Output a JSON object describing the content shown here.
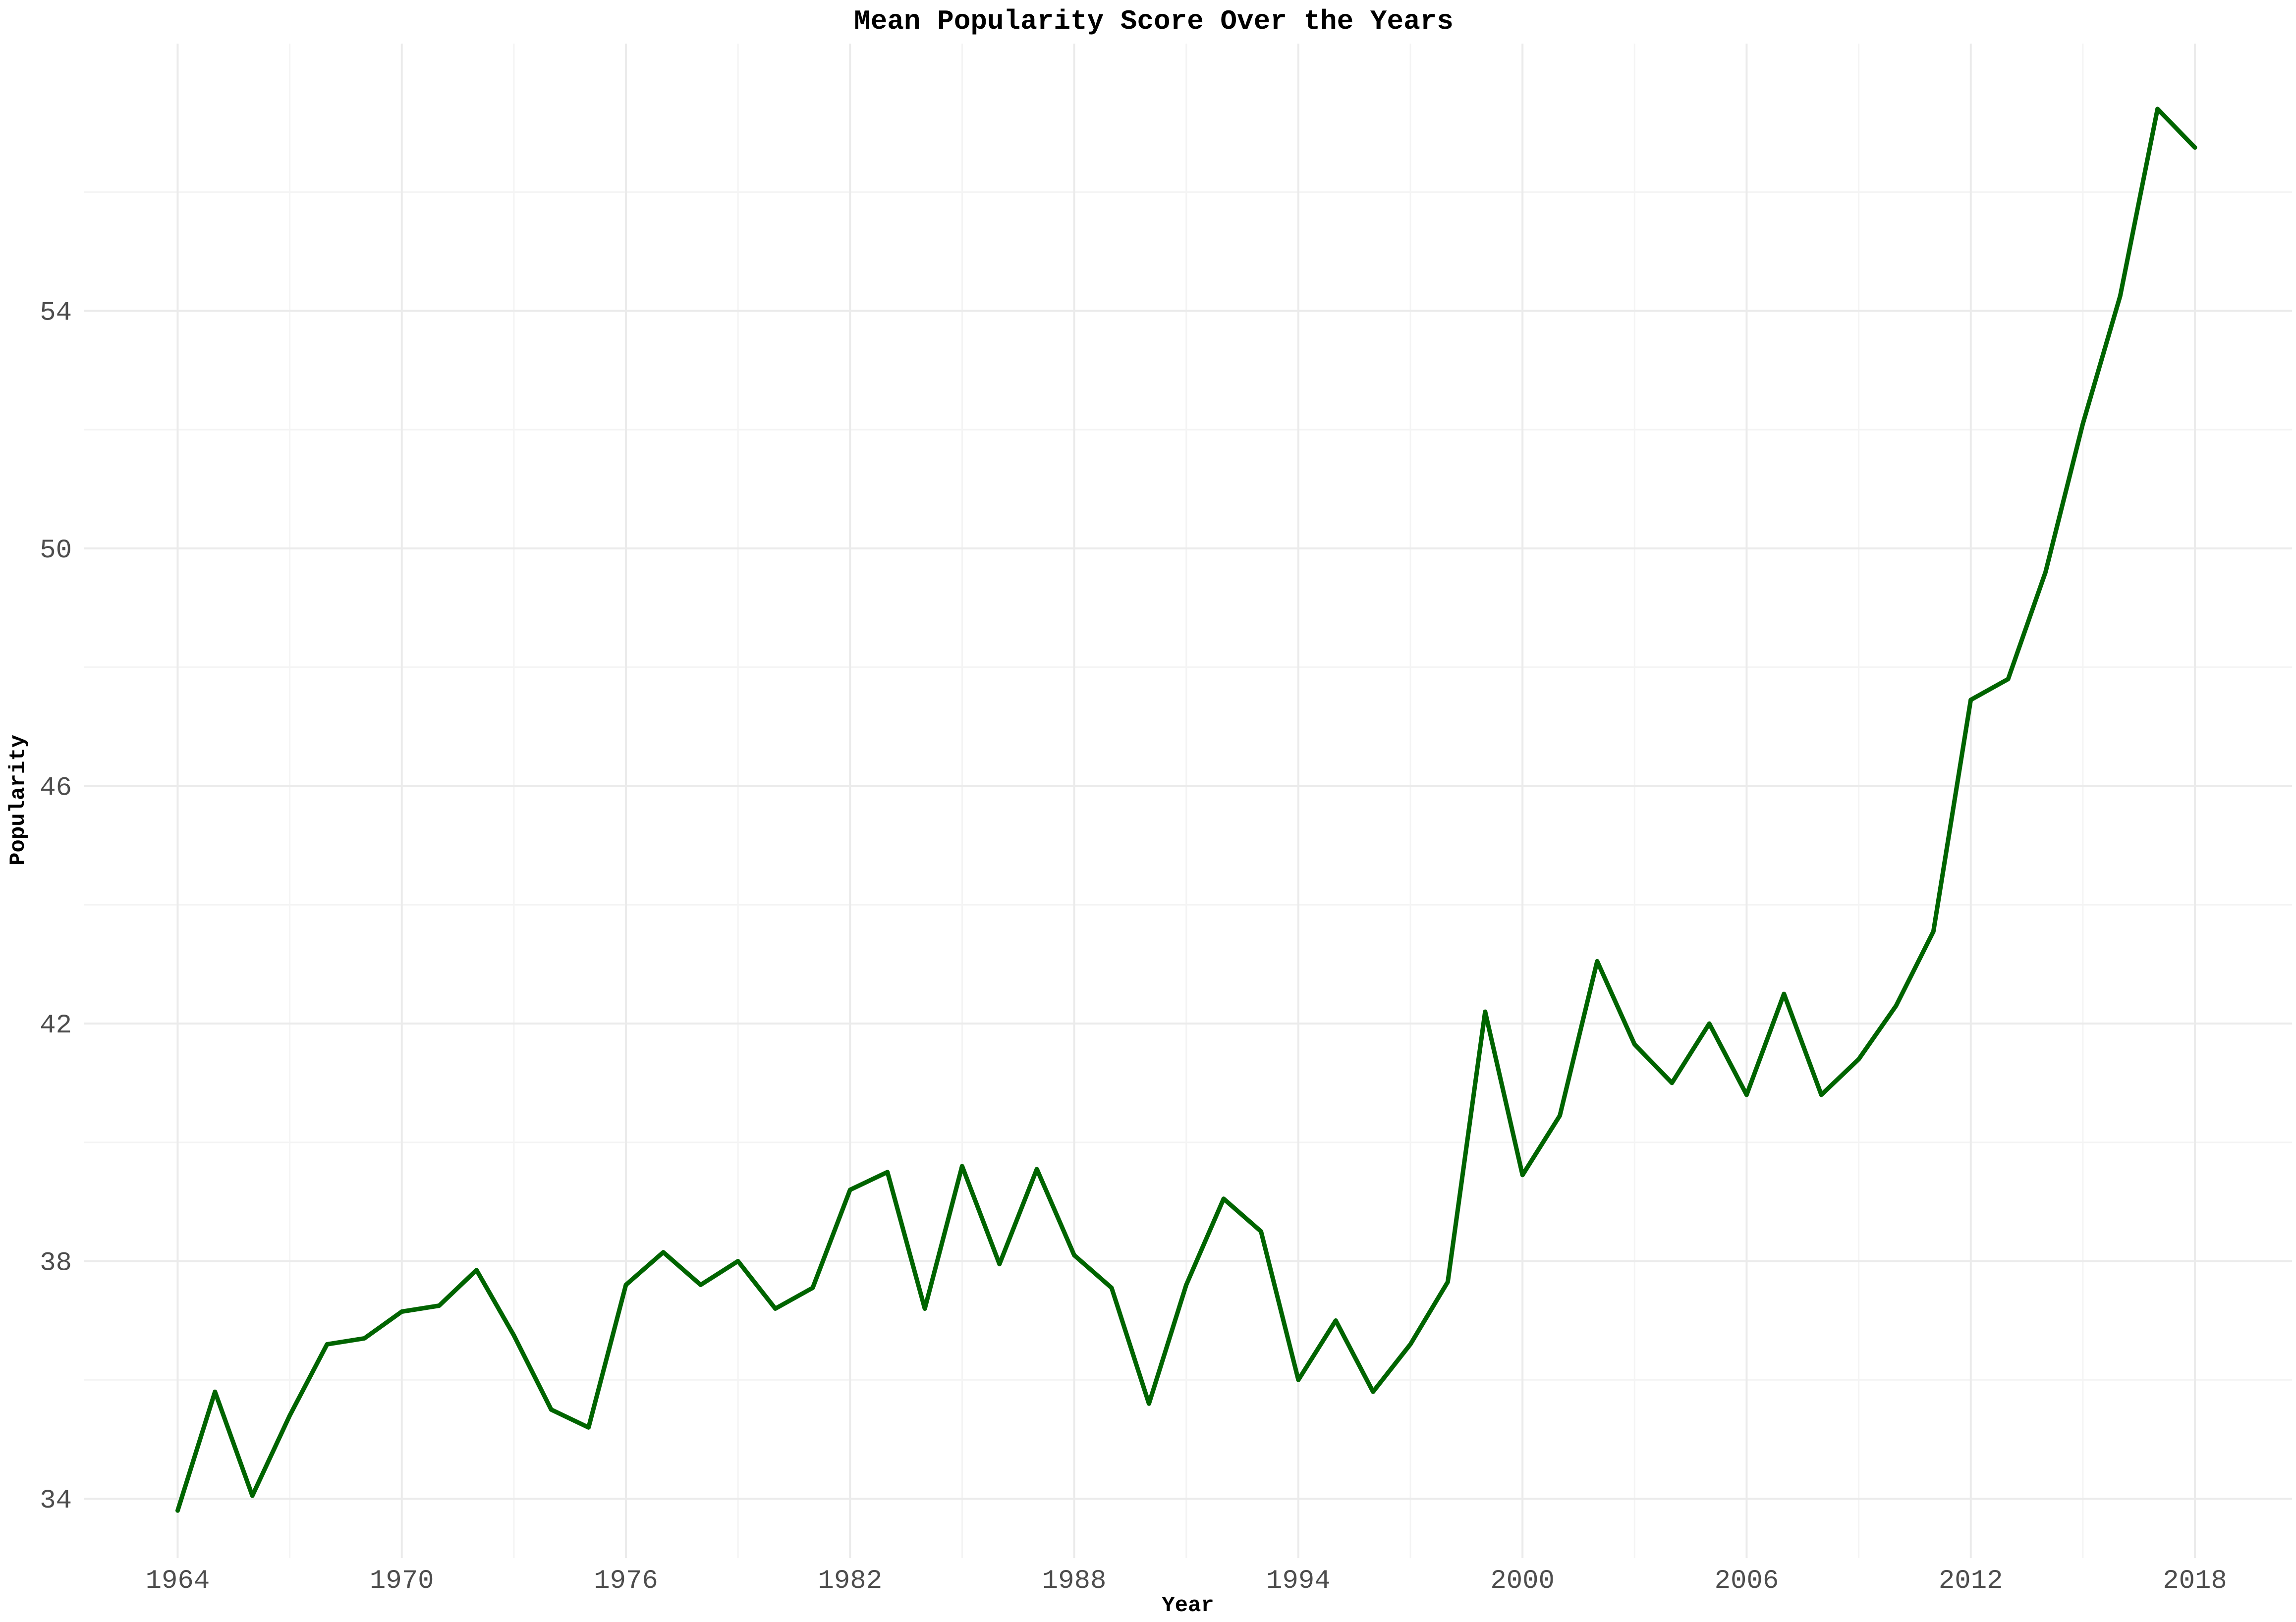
{
  "chart_data": {
    "type": "line",
    "title": "Mean Popularity Score Over the Years",
    "xlabel": "Year",
    "ylabel": "Popularity",
    "x_ticks": [
      1964,
      1970,
      1976,
      1982,
      1988,
      1994,
      2000,
      2006,
      2012,
      2018
    ],
    "y_ticks": [
      34,
      38,
      42,
      46,
      50,
      54
    ],
    "xlim": [
      1961.5,
      2020.6
    ],
    "ylim": [
      33,
      58.5
    ],
    "grid": true,
    "line_color": "#006400",
    "series": [
      {
        "x": [
          1964,
          1965,
          1966,
          1967,
          1968,
          1969,
          1970,
          1971,
          1972,
          1973,
          1974,
          1975,
          1976,
          1977,
          1978,
          1979,
          1980,
          1981,
          1982,
          1983,
          1984,
          1985,
          1986,
          1987,
          1988,
          1989,
          1990,
          1991,
          1992,
          1993,
          1994,
          1995,
          1996,
          1997,
          1998,
          1999,
          2000,
          2001,
          2002,
          2003,
          2004,
          2005,
          2006,
          2007,
          2008,
          2009,
          2010,
          2011,
          2012,
          2013,
          2014,
          2015,
          2016,
          2017,
          2018
        ],
        "values": [
          33.8,
          35.8,
          34.05,
          35.4,
          36.6,
          36.7,
          37.15,
          37.25,
          37.85,
          36.75,
          35.5,
          35.2,
          37.6,
          38.15,
          37.6,
          38.0,
          37.2,
          37.55,
          39.2,
          39.5,
          37.2,
          39.6,
          37.95,
          39.55,
          38.1,
          37.55,
          35.6,
          37.6,
          39.05,
          38.5,
          36.0,
          37.0,
          35.8,
          36.6,
          37.65,
          42.2,
          39.45,
          40.45,
          43.05,
          41.65,
          41.0,
          42.0,
          40.8,
          42.5,
          40.8,
          41.4,
          42.3,
          43.55,
          47.45,
          47.8,
          49.6,
          52.1,
          54.25,
          57.4,
          56.75
        ]
      }
    ]
  }
}
